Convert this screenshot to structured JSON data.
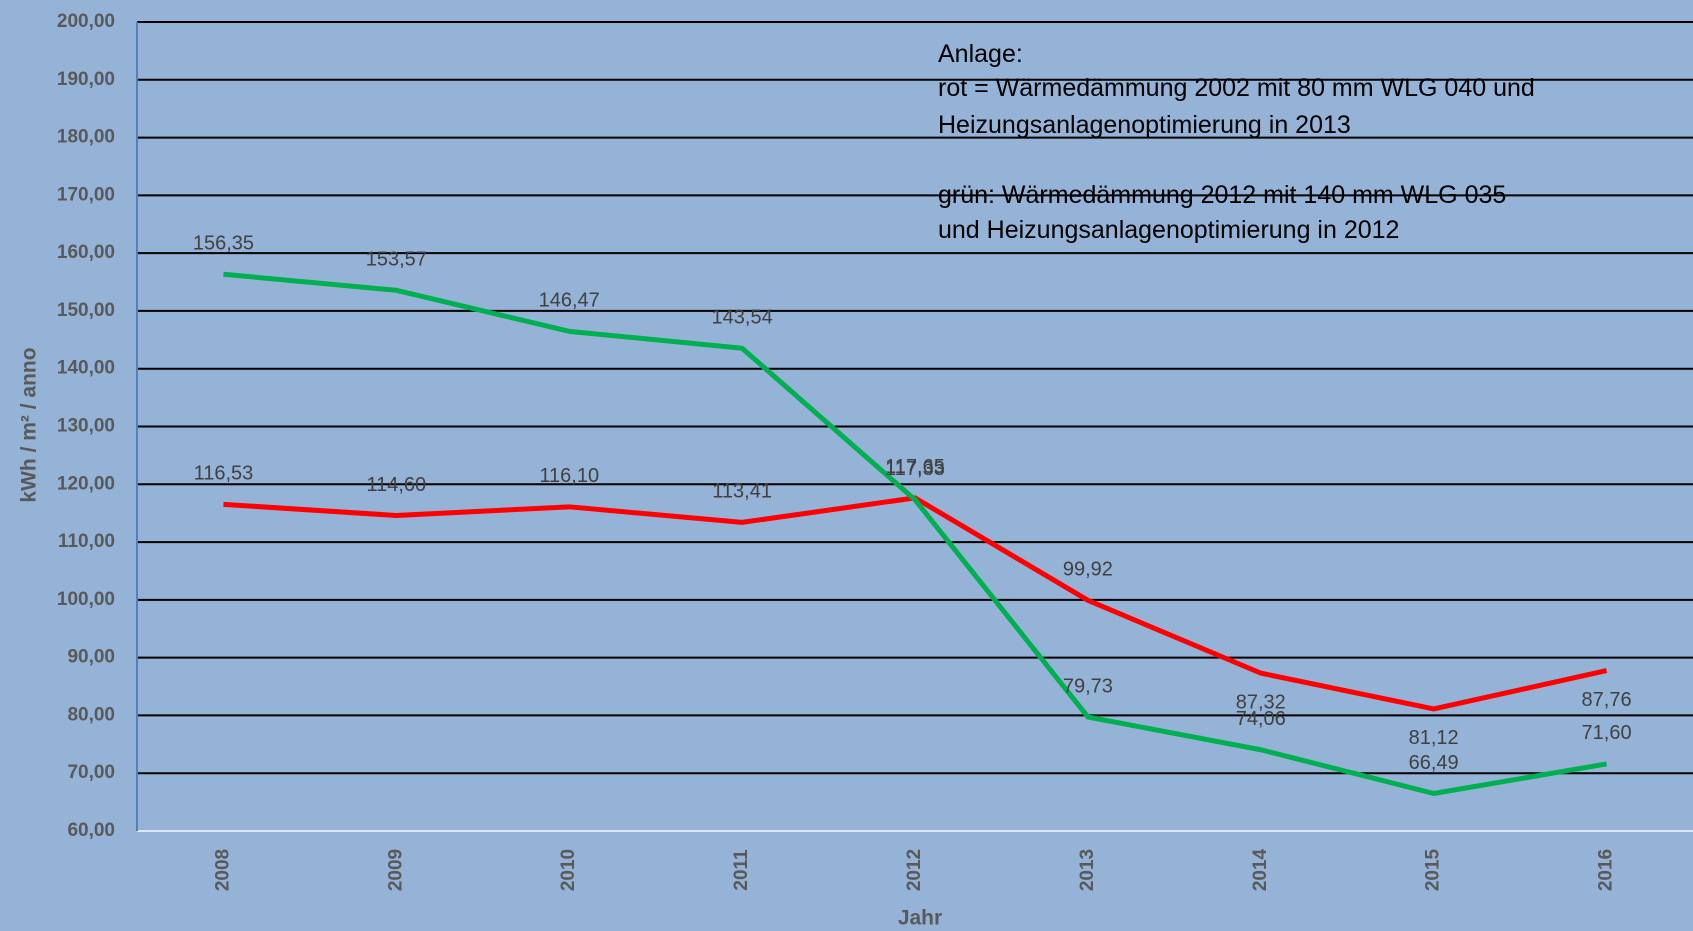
{
  "chart_data": {
    "type": "line",
    "y_label": "kWh / m² / anno",
    "x_label": "Jahr",
    "annotation": [
      "Anlage:",
      "rot = Wärmedämmung 2002 mit 80 mm WLG 040 und",
      "Heizungsanlagenoptimierung in 2013",
      "grün: Wärmedämmung 2012 mit 140 mm WLG 035",
      "und Heizungsanlagenoptimierung in 2012"
    ],
    "categories": [
      "2008",
      "2009",
      "2010",
      "2011",
      "2012",
      "2013",
      "2014",
      "2015",
      "2016"
    ],
    "series": [
      {
        "name": "rot",
        "color": "#ff0000",
        "values": [
          116.53,
          114.6,
          116.1,
          113.41,
          117.65,
          99.92,
          87.32,
          81.12,
          87.76
        ],
        "value_labels": [
          "116,53",
          "114,60",
          "116,10",
          "113,41",
          "117,65",
          "99,92",
          "87,32",
          "81,12",
          "87,76"
        ]
      },
      {
        "name": "grün",
        "color": "#00b050",
        "values": [
          156.35,
          153.57,
          146.47,
          143.54,
          117.33,
          79.73,
          74.06,
          66.49,
          71.6
        ],
        "value_labels": [
          "156,35",
          "153,57",
          "146,47",
          "143,54",
          "117,33",
          "79,73",
          "74,06",
          "66,49",
          "71,60"
        ]
      }
    ],
    "ylim": [
      60,
      200
    ],
    "yticks": [
      {
        "value": 60,
        "label": "60,00"
      },
      {
        "value": 70,
        "label": "70,00"
      },
      {
        "value": 80,
        "label": "80,00"
      },
      {
        "value": 90,
        "label": "90,00"
      },
      {
        "value": 100,
        "label": "100,00"
      },
      {
        "value": 110,
        "label": "110,00"
      },
      {
        "value": 120,
        "label": "120,00"
      },
      {
        "value": 130,
        "label": "130,00"
      },
      {
        "value": 140,
        "label": "140,00"
      },
      {
        "value": 150,
        "label": "150,00"
      },
      {
        "value": 160,
        "label": "160,00"
      },
      {
        "value": 170,
        "label": "170,00"
      },
      {
        "value": 180,
        "label": "180,00"
      },
      {
        "value": 190,
        "label": "190,00"
      },
      {
        "value": 200,
        "label": "200,00"
      }
    ],
    "grid": true
  }
}
